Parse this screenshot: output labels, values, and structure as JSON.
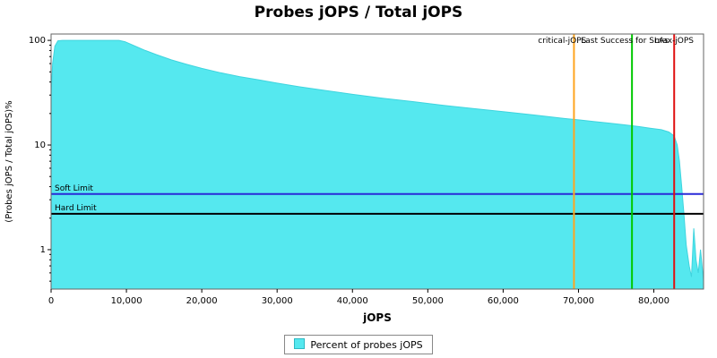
{
  "title": "Probes jOPS / Total jOPS",
  "colors": {
    "area": "#55E8EF",
    "area_edge": "#3fd4de",
    "frame": "#666666",
    "tick": "#000000",
    "text": "#000000",
    "critical_line": "#FFA520",
    "sla_line": "#00C800",
    "max_line": "#E01010",
    "soft_limit_line": "#2A2AD8",
    "hard_limit_line": "#000000"
  },
  "chart_data": {
    "type": "area",
    "title": "Probes jOPS / Total jOPS",
    "xlabel": "jOPS",
    "ylabel": "(Probes jOPS / Total jOPS)%",
    "xlim": [
      0,
      86600
    ],
    "ylim": [
      0.42,
      115
    ],
    "y_scale": "log",
    "grid": false,
    "x_ticks": [
      {
        "value": 0,
        "label": "0"
      },
      {
        "value": 10000,
        "label": "10,000"
      },
      {
        "value": 20000,
        "label": "20,000"
      },
      {
        "value": 30000,
        "label": "30,000"
      },
      {
        "value": 40000,
        "label": "40,000"
      },
      {
        "value": 50000,
        "label": "50,000"
      },
      {
        "value": 60000,
        "label": "60,000"
      },
      {
        "value": 70000,
        "label": "70,000"
      },
      {
        "value": 80000,
        "label": "80,000"
      }
    ],
    "y_ticks": [
      {
        "value": 1,
        "label": "1"
      },
      {
        "value": 10,
        "label": "10"
      },
      {
        "value": 100,
        "label": "100"
      }
    ],
    "series": [
      {
        "name": "Percent of probes jOPS",
        "points": [
          [
            0,
            30
          ],
          [
            200,
            60
          ],
          [
            500,
            88
          ],
          [
            900,
            99
          ],
          [
            1500,
            100
          ],
          [
            9000,
            100
          ],
          [
            9800,
            97
          ],
          [
            11000,
            89
          ],
          [
            12500,
            80
          ],
          [
            14000,
            73
          ],
          [
            16000,
            65
          ],
          [
            18000,
            59
          ],
          [
            20000,
            54
          ],
          [
            22500,
            49
          ],
          [
            25000,
            45
          ],
          [
            27500,
            42
          ],
          [
            30000,
            39
          ],
          [
            33000,
            36
          ],
          [
            36000,
            33.5
          ],
          [
            40000,
            30.5
          ],
          [
            44000,
            28
          ],
          [
            48000,
            26
          ],
          [
            52000,
            24
          ],
          [
            56000,
            22.3
          ],
          [
            60000,
            20.8
          ],
          [
            64000,
            19.4
          ],
          [
            68000,
            18
          ],
          [
            70000,
            17.4
          ],
          [
            72000,
            16.8
          ],
          [
            74000,
            16.2
          ],
          [
            76000,
            15.6
          ],
          [
            78000,
            15
          ],
          [
            79500,
            14.5
          ],
          [
            81000,
            14
          ],
          [
            82000,
            13.3
          ],
          [
            82700,
            12.2
          ],
          [
            83100,
            10
          ],
          [
            83400,
            7
          ],
          [
            83700,
            4
          ],
          [
            84000,
            2.2
          ],
          [
            84300,
            1.1
          ],
          [
            84700,
            0.7
          ],
          [
            85000,
            0.55
          ],
          [
            85300,
            1.6
          ],
          [
            85600,
            0.8
          ],
          [
            85900,
            0.6
          ],
          [
            86200,
            1.0
          ],
          [
            86600,
            0.5
          ]
        ]
      }
    ],
    "vlines": [
      {
        "label": "critical-jOPS",
        "x": 69400,
        "color_key": "critical_line",
        "label_anchor": "end",
        "label_dx": 14
      },
      {
        "label": "Last Success for SLAs",
        "x": 77100,
        "color_key": "sla_line",
        "label_anchor": "middle",
        "label_dx": -8
      },
      {
        "label": "max-jOPS",
        "x": 82700,
        "color_key": "max_line",
        "label_anchor": "middle",
        "label_dx": 0
      }
    ],
    "hlines": [
      {
        "label": "Soft Limit",
        "y": 3.4,
        "color_key": "soft_limit_line"
      },
      {
        "label": "Hard Limit",
        "y": 2.2,
        "color_key": "hard_limit_line"
      }
    ],
    "legend": {
      "label": "Percent of probes jOPS"
    }
  }
}
